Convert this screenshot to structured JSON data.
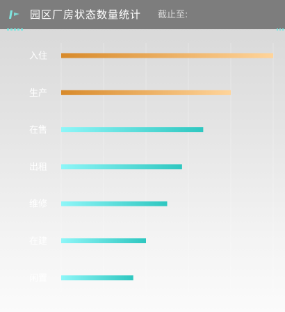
{
  "header": {
    "title": "园区厂房状态数量统计",
    "deadline_label": "截止至:",
    "logo_icon": "chart-logo-icon"
  },
  "colors": {
    "header_bg": "#7d7d7d",
    "accent": "#7fe6e0",
    "orange_start": "#d88a2a",
    "orange_end": "#ffd49a",
    "cyan_start": "#8ef6f8",
    "cyan_end": "#2ec7c0",
    "category_label": "#ffffff"
  },
  "chart_data": {
    "type": "bar",
    "orientation": "horizontal",
    "categories": [
      "入住",
      "生产",
      "在售",
      "出租",
      "维修",
      "在建",
      "闲置"
    ],
    "values": [
      100,
      80,
      67,
      57,
      50,
      40,
      34
    ],
    "bar_styles": [
      "orange",
      "orange",
      "cyan",
      "cyan",
      "cyan",
      "cyan",
      "cyan"
    ],
    "xlim": [
      0,
      100
    ],
    "grid": true
  }
}
